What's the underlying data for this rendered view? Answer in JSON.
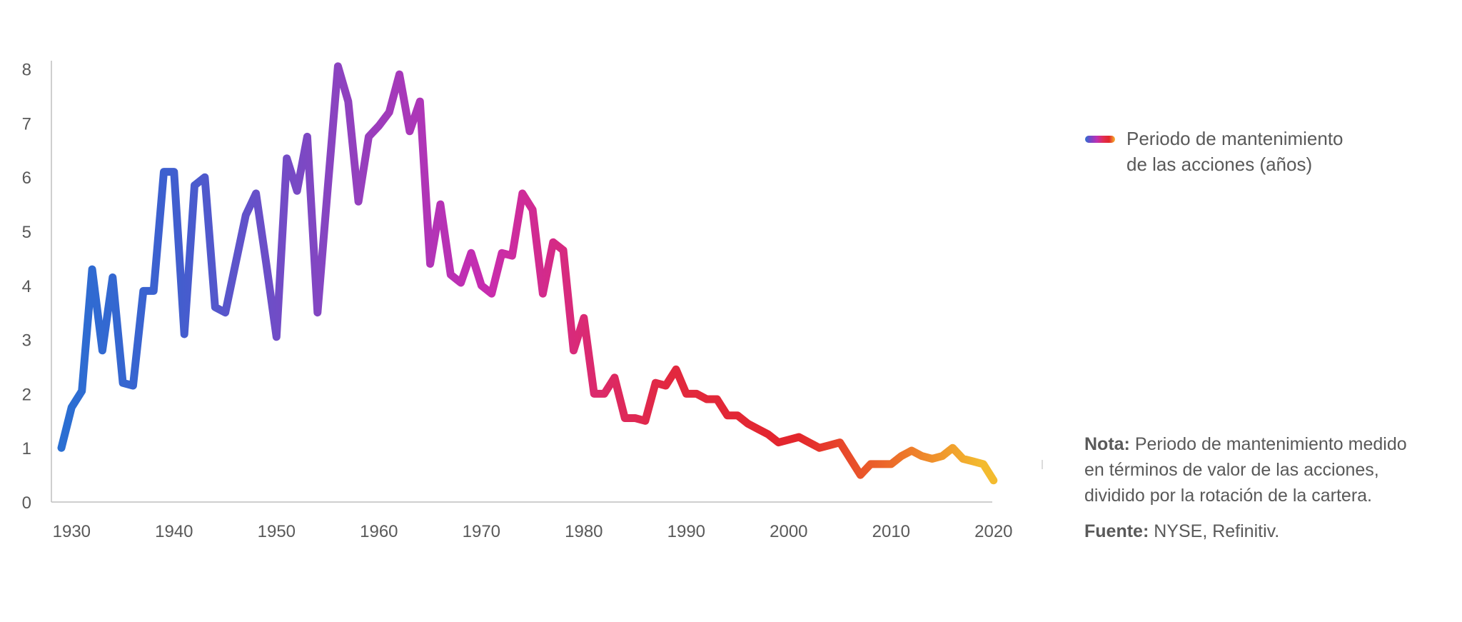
{
  "chart_data": {
    "type": "line",
    "series": [
      {
        "name": "Periodo de mantenimiento de las acciones (años)",
        "x": [
          1929,
          1930,
          1931,
          1932,
          1933,
          1934,
          1935,
          1936,
          1937,
          1938,
          1939,
          1940,
          1941,
          1942,
          1943,
          1944,
          1945,
          1946,
          1947,
          1948,
          1949,
          1950,
          1951,
          1952,
          1953,
          1954,
          1955,
          1956,
          1957,
          1958,
          1959,
          1960,
          1961,
          1962,
          1963,
          1964,
          1965,
          1966,
          1967,
          1968,
          1969,
          1970,
          1971,
          1972,
          1973,
          1974,
          1975,
          1976,
          1977,
          1978,
          1979,
          1980,
          1981,
          1982,
          1983,
          1984,
          1985,
          1986,
          1987,
          1988,
          1989,
          1990,
          1991,
          1992,
          1993,
          1994,
          1995,
          1996,
          1997,
          1998,
          1999,
          2000,
          2001,
          2002,
          2003,
          2004,
          2005,
          2006,
          2007,
          2008,
          2009,
          2010,
          2011,
          2012,
          2013,
          2014,
          2015,
          2016,
          2017,
          2018,
          2019,
          2020
        ],
        "values": [
          1.0,
          1.75,
          2.05,
          4.3,
          2.8,
          4.15,
          2.2,
          2.15,
          3.9,
          3.9,
          6.1,
          6.1,
          3.1,
          5.85,
          6.0,
          3.6,
          3.5,
          4.4,
          5.3,
          5.7,
          4.4,
          3.05,
          6.35,
          5.75,
          6.75,
          3.5,
          5.8,
          8.05,
          7.4,
          5.55,
          6.75,
          6.95,
          7.2,
          7.9,
          6.85,
          7.4,
          4.4,
          5.5,
          4.2,
          4.05,
          4.6,
          4.0,
          3.85,
          4.6,
          4.55,
          5.7,
          5.4,
          3.85,
          4.8,
          4.65,
          2.8,
          3.4,
          2.0,
          2.0,
          2.3,
          1.55,
          1.55,
          1.5,
          2.2,
          2.15,
          2.45,
          2.0,
          2.0,
          1.9,
          1.9,
          1.6,
          1.6,
          1.45,
          1.35,
          1.25,
          1.1,
          1.15,
          1.2,
          1.1,
          1.0,
          1.05,
          1.1,
          0.8,
          0.5,
          0.7,
          0.7,
          0.7,
          0.85,
          0.95,
          0.85,
          0.8,
          0.85,
          1.0,
          0.8,
          0.75,
          0.7,
          0.4
        ]
      }
    ],
    "x_ticks": [
      "1930",
      "1940",
      "1950",
      "1960",
      "1970",
      "1980",
      "1990",
      "2000",
      "2010",
      "2020"
    ],
    "y_ticks": [
      "0",
      "1",
      "2",
      "3",
      "4",
      "5",
      "6",
      "7",
      "8"
    ],
    "xlim": [
      1928,
      2021
    ],
    "ylim": [
      0,
      8
    ],
    "grid": false,
    "legend_position": "top-right",
    "gradient_colors": [
      "#2f6fd0",
      "#7b46c6",
      "#c02fb0",
      "#e02d55",
      "#e2272a",
      "#f5b82e"
    ]
  },
  "legend": {
    "label_line1": "Periodo de mantenimiento",
    "label_line2": "de las acciones (años)"
  },
  "note": {
    "label": "Nota:",
    "text_line1": "Periodo de mantenimiento medido",
    "text_line2": "en términos de valor de las acciones,",
    "text_line3": "dividido por la rotación de la cartera."
  },
  "source": {
    "label": "Fuente:",
    "text": "NYSE, Refinitiv."
  }
}
